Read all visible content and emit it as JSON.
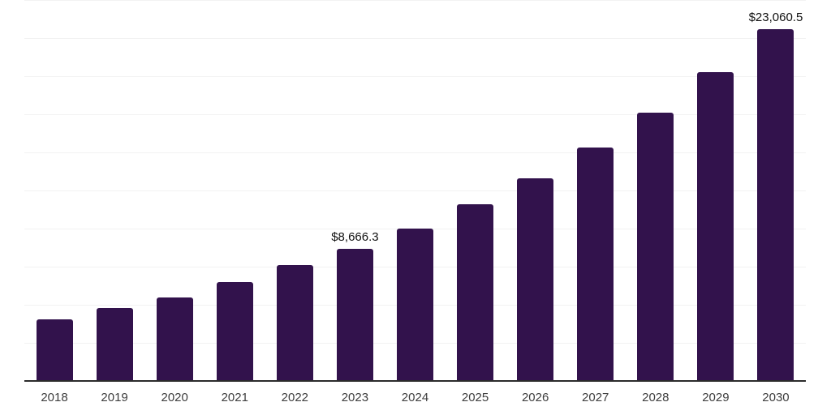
{
  "chart_data": {
    "type": "bar",
    "title": "",
    "xlabel": "",
    "ylabel": "",
    "categories": [
      "2018",
      "2019",
      "2020",
      "2021",
      "2022",
      "2023",
      "2024",
      "2025",
      "2026",
      "2027",
      "2028",
      "2029",
      "2030"
    ],
    "values": [
      4060,
      4810,
      5470,
      6515,
      7590,
      8666.3,
      10005,
      11570,
      13285,
      15340,
      17615,
      20250,
      23060.5
    ],
    "data_labels": [
      "",
      "",
      "",
      "",
      "",
      "$8,666.3",
      "",
      "",
      "",
      "",
      "",
      "",
      "$23,060.5"
    ],
    "ylim": [
      0,
      25000
    ],
    "gridline_step": 2500,
    "grid": true,
    "legend": false,
    "bar_color": "#32124c",
    "grid_color": "#f2f2f2",
    "axis_line_color": "#2b2b2b",
    "tick_label_color": "#3d3d3d",
    "data_label_color": "#111111",
    "background": "#ffffff"
  }
}
